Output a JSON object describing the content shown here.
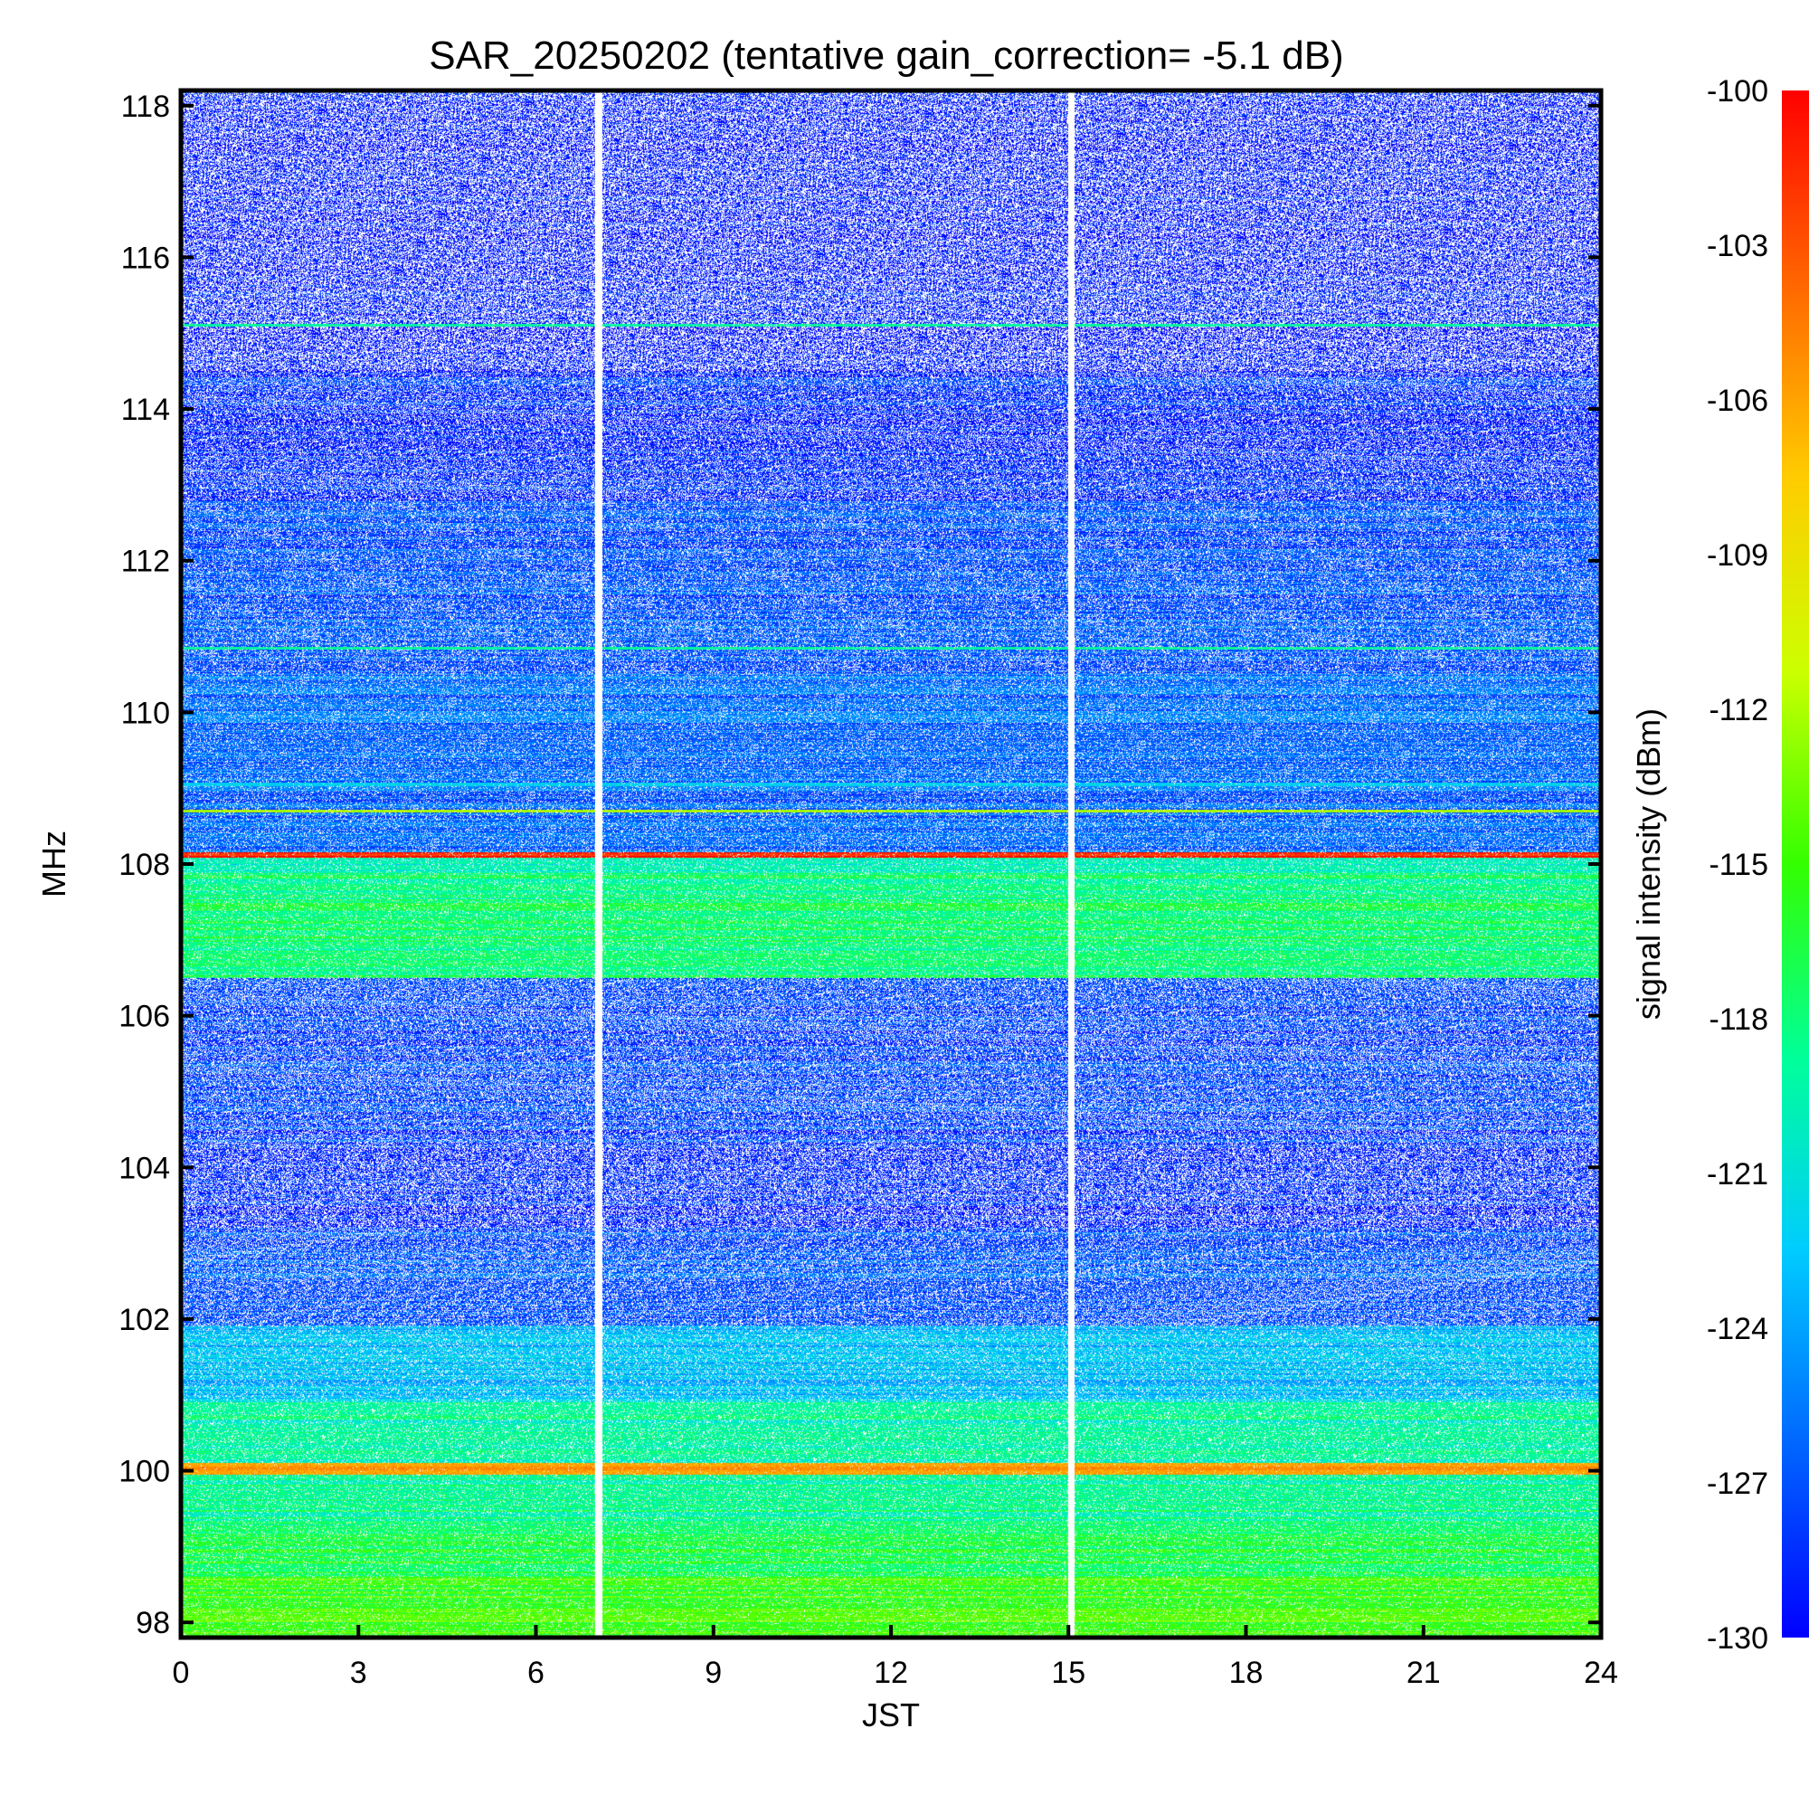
{
  "chart_data": {
    "type": "heatmap",
    "title": "SAR_20250202 (tentative gain_correction= -5.1 dB)",
    "xlabel": "JST",
    "ylabel": "MHz",
    "colorbar_label": "signal intensity (dBm)",
    "xlim": [
      0,
      24
    ],
    "ylim": [
      97.8,
      118.2
    ],
    "clim": [
      -130,
      -100
    ],
    "x_ticks": [
      0,
      3,
      6,
      9,
      12,
      15,
      18,
      21,
      24
    ],
    "y_ticks": [
      98,
      100,
      102,
      104,
      106,
      108,
      110,
      112,
      114,
      116,
      118
    ],
    "colorbar_ticks": [
      -100,
      -103,
      -106,
      -109,
      -112,
      -115,
      -118,
      -121,
      -124,
      -127,
      -130
    ],
    "colormap": [
      "#0000ff",
      "#0066ff",
      "#00ccff",
      "#00ff99",
      "#33ff00",
      "#ccff00",
      "#ffcc00",
      "#ff6600",
      "#ff0000"
    ],
    "data_gaps_jst": [
      {
        "from": 7.0,
        "to": 7.12
      },
      {
        "from": 15.0,
        "to": 15.1
      }
    ],
    "frequency_bands": [
      {
        "from": 97.8,
        "to": 98.6,
        "level_dbm": -115,
        "noise": 0.15
      },
      {
        "from": 98.6,
        "to": 99.2,
        "level_dbm": -117,
        "noise": 0.2
      },
      {
        "from": 99.2,
        "to": 99.95,
        "level_dbm": -118.5,
        "noise": 0.2
      },
      {
        "from": 99.95,
        "to": 100.1,
        "level_dbm": -106,
        "noise": 0.05
      },
      {
        "from": 100.1,
        "to": 100.9,
        "level_dbm": -119,
        "noise": 0.25
      },
      {
        "from": 100.9,
        "to": 101.9,
        "level_dbm": -123,
        "noise": 0.3
      },
      {
        "from": 101.9,
        "to": 103.2,
        "level_dbm": -127,
        "noise": 0.55
      },
      {
        "from": 103.2,
        "to": 104.3,
        "level_dbm": -128.5,
        "noise": 0.7
      },
      {
        "from": 104.3,
        "to": 106.5,
        "level_dbm": -127.5,
        "noise": 0.6
      },
      {
        "from": 106.5,
        "to": 107.9,
        "level_dbm": -118,
        "noise": 0.2
      },
      {
        "from": 107.9,
        "to": 108.08,
        "level_dbm": -120,
        "noise": 0.2
      },
      {
        "from": 108.08,
        "to": 108.15,
        "level_dbm": -101,
        "noise": 0.1
      },
      {
        "from": 108.15,
        "to": 110.5,
        "level_dbm": -126,
        "noise": 0.35
      },
      {
        "from": 110.5,
        "to": 112.8,
        "level_dbm": -127,
        "noise": 0.45
      },
      {
        "from": 112.8,
        "to": 114.5,
        "level_dbm": -128.5,
        "noise": 0.6
      },
      {
        "from": 114.5,
        "to": 118.2,
        "level_dbm": -129.3,
        "noise": 0.85
      }
    ],
    "persistent_lines": [
      {
        "freq_mhz": 115.1,
        "level_dbm": -119
      },
      {
        "freq_mhz": 110.85,
        "level_dbm": -119
      },
      {
        "freq_mhz": 109.05,
        "level_dbm": -122
      },
      {
        "freq_mhz": 108.7,
        "level_dbm": -112
      },
      {
        "freq_mhz": 100.03,
        "level_dbm": -105
      }
    ]
  }
}
